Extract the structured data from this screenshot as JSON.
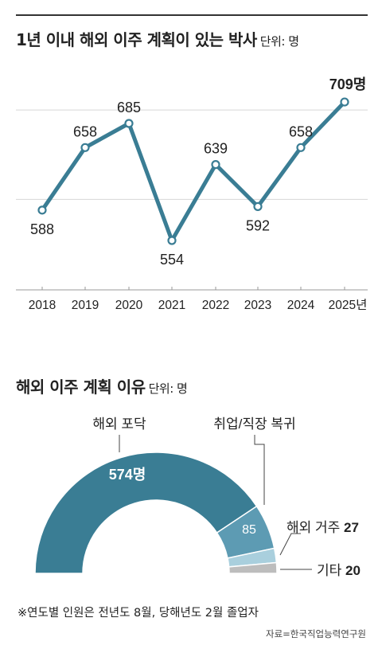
{
  "charts": {
    "line_title": "1년 이내 해외 이주 계획이 있는 박사",
    "line_unit": "단위: 명",
    "donut_title": "해외 이주 계획 이유",
    "donut_unit": "단위: 명"
  },
  "chart_data": [
    {
      "type": "line",
      "title": "1년 이내 해외 이주 계획이 있는 박사",
      "unit": "단위: 명",
      "x": [
        "2018",
        "2019",
        "2020",
        "2021",
        "2022",
        "2023",
        "2024",
        "2025년"
      ],
      "values": [
        588,
        658,
        685,
        554,
        639,
        592,
        658,
        709
      ],
      "value_labels": [
        "588",
        "658",
        "685",
        "554",
        "639",
        "592",
        "658",
        "709명"
      ],
      "ylim": [
        500,
        730
      ],
      "grid": true,
      "color": "#3a7d94"
    },
    {
      "type": "pie",
      "style": "half-donut",
      "title": "해외 이주 계획 이유",
      "unit": "단위: 명",
      "categories": [
        "해외 포닥",
        "취업/직장 복귀",
        "해외 거주",
        "기타"
      ],
      "values": [
        574,
        85,
        27,
        20
      ],
      "inner_labels": [
        "574명",
        "85",
        "",
        ""
      ],
      "outer_labels": [
        "해외 포닥",
        "취업/직장 복귀",
        "해외 거주 27",
        "기타 20"
      ],
      "colors": [
        "#3a7d94",
        "#5d9bb3",
        "#a9cfdd",
        "#bdbdbd"
      ]
    }
  ],
  "footer": {
    "note": "※연도별 인원은 전년도 8월, 당해년도 2월 졸업자",
    "source": "자료=한국직업능력연구원"
  }
}
